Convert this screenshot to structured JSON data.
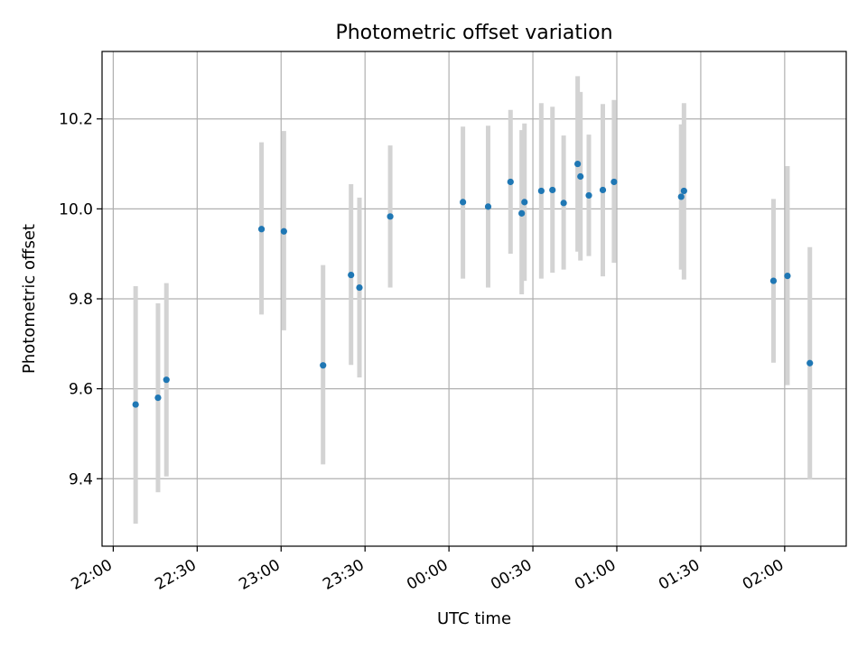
{
  "chart_data": {
    "type": "scatter",
    "title": "Photometric offset variation",
    "xlabel": "UTC time",
    "ylabel": "Photometric offset",
    "x_tick_labels": [
      "22:00",
      "22:30",
      "23:00",
      "23:30",
      "00:00",
      "00:30",
      "01:00",
      "01:30",
      "02:00"
    ],
    "y_tick_labels": [
      "9.4",
      "9.6",
      "9.8",
      "10.0",
      "10.2"
    ],
    "y_ticks": [
      9.4,
      9.6,
      9.8,
      10.0,
      10.2
    ],
    "xlim": [
      "21:56",
      "02:22"
    ],
    "ylim": [
      9.25,
      10.35
    ],
    "grid": true,
    "colors": {
      "point": "#1f77b4",
      "errorbar": "#d3d3d3",
      "grid": "#b0b0b0"
    },
    "series": [
      {
        "x": [
          "22:08",
          "22:16",
          "22:19",
          "22:53",
          "23:01",
          "23:15",
          "23:25",
          "23:28",
          "23:39",
          "00:05",
          "00:14",
          "00:22",
          "00:26",
          "00:27",
          "00:33",
          "00:37",
          "00:41",
          "00:46",
          "00:47",
          "00:50",
          "00:55",
          "00:59",
          "01:23",
          "01:24",
          "01:56",
          "02:01",
          "02:09"
        ],
        "y": [
          9.565,
          9.58,
          9.62,
          9.955,
          9.95,
          9.652,
          9.853,
          9.825,
          9.983,
          10.015,
          10.005,
          10.06,
          9.99,
          10.015,
          10.04,
          10.042,
          10.013,
          10.1,
          10.072,
          10.03,
          10.042,
          10.06,
          10.027,
          10.04,
          9.84,
          9.851,
          9.657
        ],
        "yerr_low": [
          9.3,
          9.37,
          9.405,
          9.765,
          9.73,
          9.432,
          9.653,
          9.625,
          9.825,
          9.845,
          9.825,
          9.9,
          9.81,
          9.84,
          9.845,
          9.858,
          9.865,
          9.905,
          9.885,
          9.895,
          9.85,
          9.88,
          9.865,
          9.843,
          9.658,
          9.608,
          9.398
        ],
        "yerr_high": [
          9.828,
          9.79,
          9.835,
          10.148,
          10.173,
          9.875,
          10.055,
          10.025,
          10.141,
          10.183,
          10.185,
          10.22,
          10.175,
          10.19,
          10.235,
          10.227,
          10.163,
          10.295,
          10.26,
          10.165,
          10.233,
          10.242,
          10.188,
          10.235,
          10.022,
          10.095,
          9.915
        ]
      }
    ]
  }
}
